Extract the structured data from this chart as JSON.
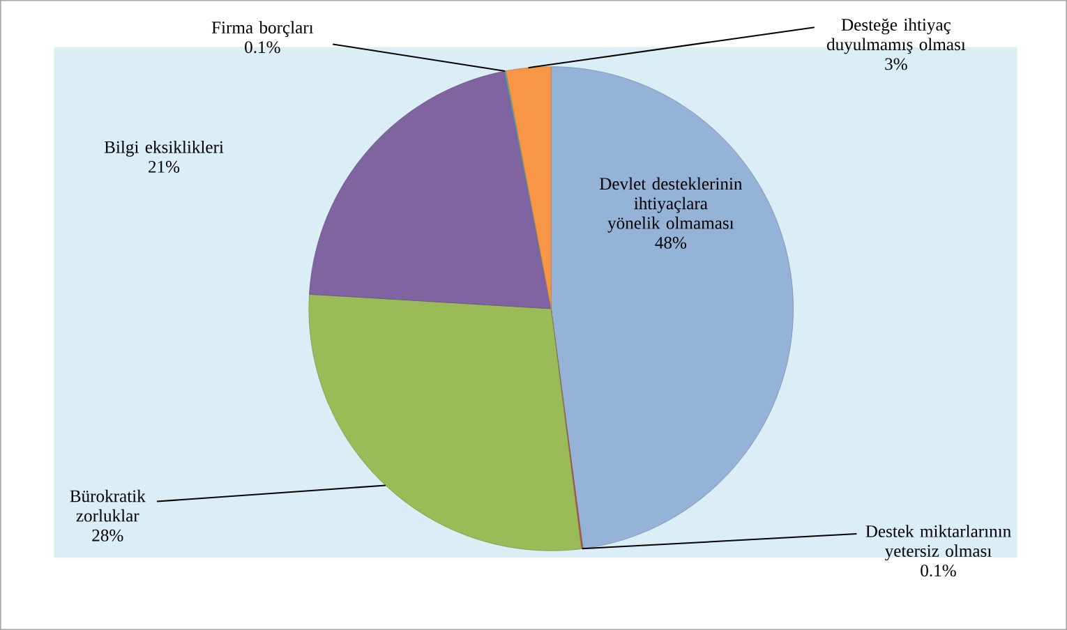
{
  "chart_data": {
    "type": "pie",
    "categories": [
      "Devlet desteklerinin ihtiyaçlara yönelik olmaması",
      "Destek miktarlarının yetersiz olması",
      "Bürokratik zorluklar",
      "Bilgi eksiklikleri",
      "Firma borçları",
      "Desteğe ihtiyaç duyulmamış olması"
    ],
    "values": [
      48,
      0.1,
      28,
      21,
      0.1,
      3
    ],
    "value_labels": [
      "48%",
      "0.1%",
      "28%",
      "21%",
      "0.1%",
      "3%"
    ],
    "colors": [
      "#95b3d7",
      "#c0504d",
      "#9bbb59",
      "#8064a2",
      "#4bacc6",
      "#f79646"
    ]
  }
}
